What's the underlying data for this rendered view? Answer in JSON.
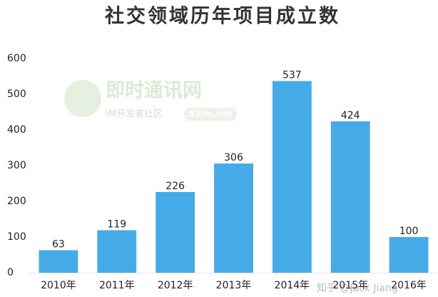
{
  "chart_data": {
    "type": "bar",
    "title": "社交领域历年项目成立数",
    "categories": [
      "2010年",
      "2011年",
      "2012年",
      "2013年",
      "2014年",
      "2015年",
      "2016年"
    ],
    "values": [
      63,
      119,
      226,
      306,
      537,
      424,
      100
    ],
    "color": "#45abe8",
    "ylim": [
      0,
      600
    ],
    "yticks": [
      0,
      100,
      200,
      300,
      400,
      500,
      600
    ],
    "grid": false,
    "annotations": [
      "即时通讯网",
      "IM开发者社区",
      "52im.net",
      "知乎 @Jack Jiang"
    ]
  }
}
